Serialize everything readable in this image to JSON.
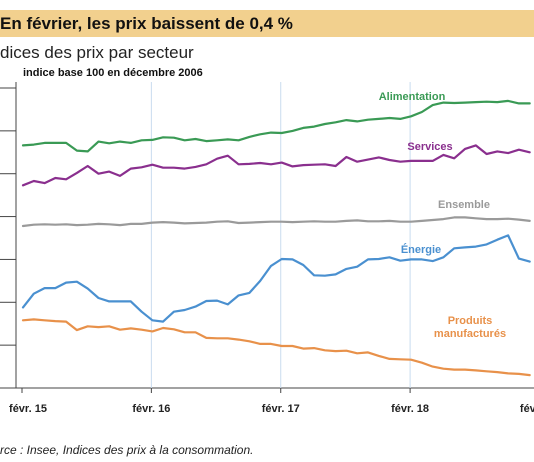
{
  "header": {
    "title": "En février, les prix baissent de 0,4 %",
    "accent_color": "#f2d08e"
  },
  "subtitle": "dices des prix par secteur",
  "source": "rce : Insee, Indices des prix à la consommation.",
  "chart_data": {
    "type": "line",
    "unit_note": "indice base 100 en décembre 2006",
    "x_ticks": [
      "févr. 15",
      "févr. 16",
      "févr. 17",
      "févr. 18",
      "févr"
    ],
    "x_tick_months": [
      0,
      12,
      24,
      36,
      48
    ],
    "x_range": [
      0,
      47
    ],
    "y_range": [
      0,
      7
    ],
    "grid": {
      "vertical": true,
      "horizontal": false
    },
    "series": [
      {
        "name": "Alimentation",
        "color": "#3a9a55",
        "values": [
          5.66,
          5.68,
          5.72,
          5.72,
          5.72,
          5.54,
          5.52,
          5.75,
          5.71,
          5.75,
          5.72,
          5.78,
          5.79,
          5.85,
          5.84,
          5.78,
          5.81,
          5.76,
          5.78,
          5.8,
          5.78,
          5.86,
          5.92,
          5.96,
          5.95,
          6.0,
          6.07,
          6.1,
          6.16,
          6.2,
          6.25,
          6.22,
          6.26,
          6.28,
          6.3,
          6.28,
          6.34,
          6.44,
          6.6,
          6.66,
          6.65,
          6.66,
          6.67,
          6.68,
          6.67,
          6.7,
          6.64,
          6.64
        ]
      },
      {
        "name": "Services",
        "color": "#8a2f8e",
        "values": [
          4.73,
          4.83,
          4.78,
          4.9,
          4.87,
          5.02,
          5.18,
          5.0,
          5.05,
          4.95,
          5.12,
          5.15,
          5.21,
          5.14,
          5.14,
          5.12,
          5.16,
          5.22,
          5.35,
          5.42,
          5.22,
          5.23,
          5.25,
          5.22,
          5.26,
          5.17,
          5.2,
          5.21,
          5.22,
          5.18,
          5.39,
          5.28,
          5.33,
          5.38,
          5.32,
          5.28,
          5.3,
          5.3,
          5.3,
          5.44,
          5.36,
          5.58,
          5.66,
          5.46,
          5.52,
          5.48,
          5.56,
          5.5
        ]
      },
      {
        "name": "Ensemble",
        "color": "#9a9a9a",
        "values": [
          3.78,
          3.81,
          3.82,
          3.81,
          3.82,
          3.8,
          3.81,
          3.83,
          3.82,
          3.8,
          3.83,
          3.83,
          3.86,
          3.87,
          3.86,
          3.84,
          3.85,
          3.86,
          3.88,
          3.89,
          3.85,
          3.86,
          3.87,
          3.88,
          3.88,
          3.87,
          3.88,
          3.89,
          3.88,
          3.88,
          3.9,
          3.91,
          3.89,
          3.89,
          3.9,
          3.88,
          3.88,
          3.9,
          3.92,
          3.94,
          3.98,
          3.98,
          3.96,
          3.94,
          3.94,
          3.95,
          3.93,
          3.9
        ]
      },
      {
        "name": "Énergie",
        "color": "#4a90d0",
        "values": [
          1.88,
          2.2,
          2.33,
          2.33,
          2.46,
          2.48,
          2.32,
          2.1,
          2.02,
          2.02,
          2.02,
          1.78,
          1.58,
          1.55,
          1.78,
          1.82,
          1.9,
          2.03,
          2.04,
          1.95,
          2.16,
          2.22,
          2.5,
          2.85,
          3.01,
          3.0,
          2.87,
          2.63,
          2.62,
          2.65,
          2.78,
          2.83,
          3.0,
          3.01,
          3.05,
          2.97,
          3.0,
          3.0,
          2.96,
          3.05,
          3.26,
          3.28,
          3.3,
          3.35,
          3.46,
          3.56,
          3.02,
          2.95
        ]
      },
      {
        "name": "Produits manufacturés",
        "color": "#e8914a",
        "values": [
          1.58,
          1.6,
          1.58,
          1.56,
          1.55,
          1.35,
          1.44,
          1.42,
          1.44,
          1.36,
          1.39,
          1.36,
          1.32,
          1.4,
          1.37,
          1.3,
          1.3,
          1.17,
          1.16,
          1.16,
          1.13,
          1.09,
          1.03,
          1.03,
          0.98,
          0.98,
          0.92,
          0.93,
          0.88,
          0.86,
          0.87,
          0.81,
          0.83,
          0.75,
          0.68,
          0.67,
          0.66,
          0.59,
          0.5,
          0.45,
          0.43,
          0.43,
          0.41,
          0.39,
          0.37,
          0.34,
          0.33,
          0.3
        ]
      }
    ],
    "series_labels": [
      "Alimentation",
      "Services",
      "Ensemble",
      "Énergie",
      "Produits",
      "manufacturés"
    ]
  }
}
